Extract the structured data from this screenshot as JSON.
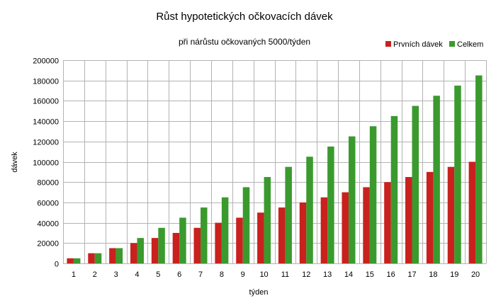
{
  "chart_data": {
    "type": "bar",
    "title": "Růst hypotetických očkovacích dávek",
    "subtitle": "při nárůstu očkovaných 5000/týden",
    "xlabel": "týden",
    "ylabel": "dávek",
    "ylim": [
      0,
      200000
    ],
    "yticks": [
      0,
      20000,
      40000,
      60000,
      80000,
      100000,
      120000,
      140000,
      160000,
      180000,
      200000
    ],
    "grid": true,
    "legend_position": "top-right",
    "categories": [
      "1",
      "2",
      "3",
      "4",
      "5",
      "6",
      "7",
      "8",
      "9",
      "10",
      "11",
      "12",
      "13",
      "14",
      "15",
      "16",
      "17",
      "18",
      "19",
      "20"
    ],
    "series": [
      {
        "name": "Prvních dávek",
        "color": "#c9211e",
        "values": [
          5000,
          10000,
          15000,
          20000,
          25000,
          30000,
          35000,
          40000,
          45000,
          50000,
          55000,
          60000,
          65000,
          70000,
          75000,
          80000,
          85000,
          90000,
          95000,
          100000
        ]
      },
      {
        "name": "Celkem",
        "color": "#3a9a2e",
        "values": [
          5000,
          10000,
          15000,
          25000,
          35000,
          45000,
          55000,
          65000,
          75000,
          85000,
          95000,
          105000,
          115000,
          125000,
          135000,
          145000,
          155000,
          165000,
          175000,
          185000
        ]
      }
    ]
  }
}
